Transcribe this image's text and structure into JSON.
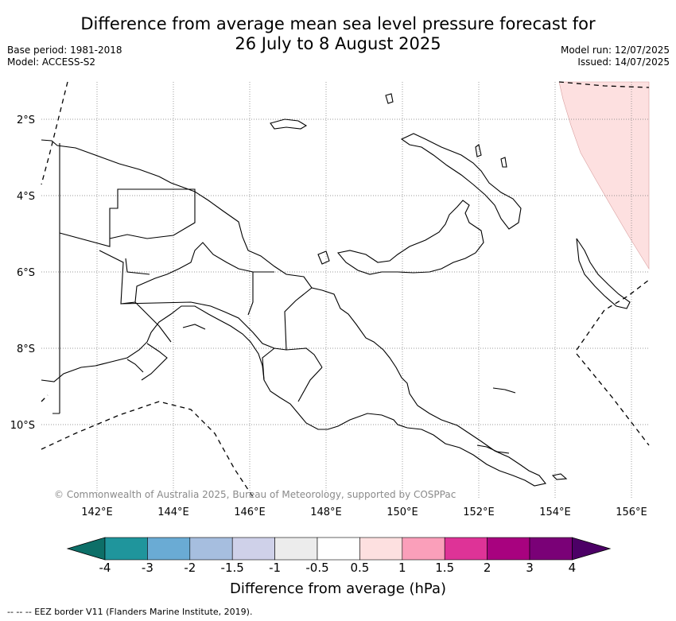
{
  "title": {
    "line1": "Difference from average mean sea level pressure forecast for",
    "line2": "26 July to 8 August 2025"
  },
  "meta": {
    "base_period": "Base period: 1981-2018",
    "model": "Model: ACCESS-S2",
    "model_run": "Model run: 12/07/2025",
    "issued": "Issued: 14/07/2025"
  },
  "map": {
    "lat_labels": [
      "2°S",
      "4°S",
      "6°S",
      "8°S",
      "10°S"
    ],
    "lon_labels": [
      "142°E",
      "144°E",
      "146°E",
      "148°E",
      "150°E",
      "152°E",
      "154°E",
      "156°E"
    ],
    "copyright": "© Commonwealth of Australia 2025, Bureau of Meteorology, supported by COSPPac",
    "anomaly_region": {
      "category": "0.5 to 1",
      "color": "#fde0e0"
    }
  },
  "colorbar": {
    "title": "Difference from average (hPa)",
    "labels": [
      "-4",
      "-3",
      "-2",
      "-1.5",
      "-1",
      "-0.5",
      "0.5",
      "1",
      "1.5",
      "2",
      "3",
      "4"
    ],
    "colors": [
      "#0d6f68",
      "#1f959c",
      "#6aabd4",
      "#a6bedf",
      "#cfd1e9",
      "#ececec",
      "#ffffff",
      "#fde0e0",
      "#fa9fba",
      "#de3397",
      "#a8027f",
      "#7a0177",
      "#4c0066"
    ]
  },
  "footnote": "--  --  -- EEZ border V11 (Flanders Marine Institute, 2019)."
}
